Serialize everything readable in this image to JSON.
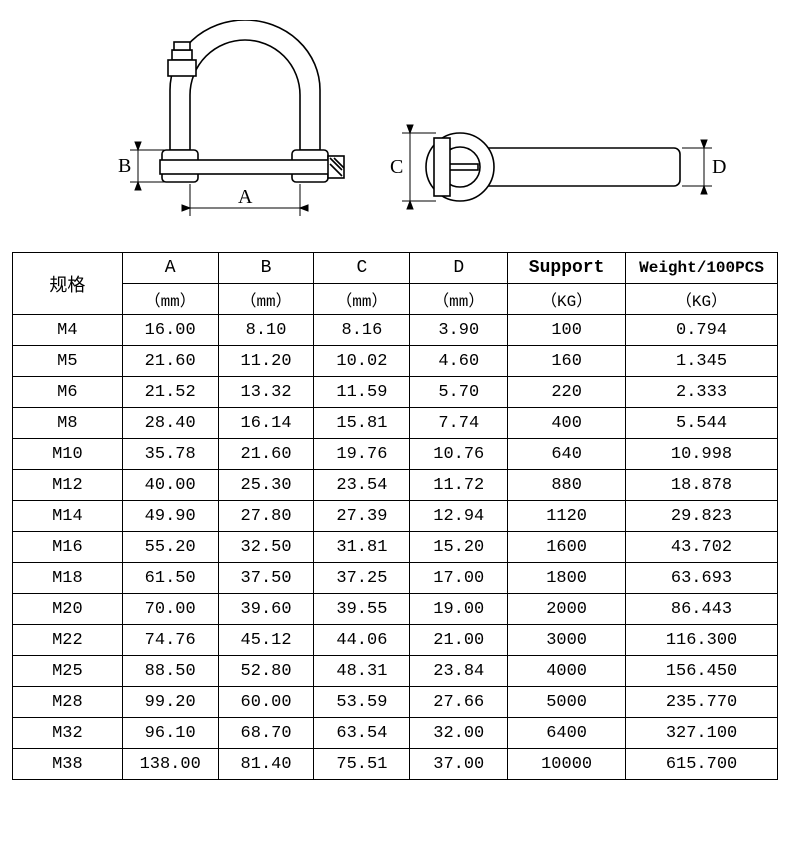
{
  "diagram": {
    "labels": {
      "A": "A",
      "B": "B",
      "C": "C",
      "D": "D"
    },
    "stroke": "#000000",
    "fill": "#ffffff",
    "hatch_fill": "#eeeeee"
  },
  "table": {
    "headers": {
      "spec": "规格",
      "A": "A",
      "A_unit": "（mm）",
      "B": "B",
      "B_unit": "（mm）",
      "C": "C",
      "C_unit": "（mm）",
      "D": "D",
      "D_unit": "（mm）",
      "support": "Support",
      "support_unit": "（KG）",
      "weight": "Weight/100PCS",
      "weight_unit": "（KG）"
    },
    "rows": [
      {
        "spec": "M4",
        "A": "16.00",
        "B": "8.10",
        "C": "8.16",
        "D": "3.90",
        "support": "100",
        "weight": "0.794"
      },
      {
        "spec": "M5",
        "A": "21.60",
        "B": "11.20",
        "C": "10.02",
        "D": "4.60",
        "support": "160",
        "weight": "1.345"
      },
      {
        "spec": "M6",
        "A": "21.52",
        "B": "13.32",
        "C": "11.59",
        "D": "5.70",
        "support": "220",
        "weight": "2.333"
      },
      {
        "spec": "M8",
        "A": "28.40",
        "B": "16.14",
        "C": "15.81",
        "D": "7.74",
        "support": "400",
        "weight": "5.544"
      },
      {
        "spec": "M10",
        "A": "35.78",
        "B": "21.60",
        "C": "19.76",
        "D": "10.76",
        "support": "640",
        "weight": "10.998"
      },
      {
        "spec": "M12",
        "A": "40.00",
        "B": "25.30",
        "C": "23.54",
        "D": "11.72",
        "support": "880",
        "weight": "18.878"
      },
      {
        "spec": "M14",
        "A": "49.90",
        "B": "27.80",
        "C": "27.39",
        "D": "12.94",
        "support": "1120",
        "weight": "29.823"
      },
      {
        "spec": "M16",
        "A": "55.20",
        "B": "32.50",
        "C": "31.81",
        "D": "15.20",
        "support": "1600",
        "weight": "43.702"
      },
      {
        "spec": "M18",
        "A": "61.50",
        "B": "37.50",
        "C": "37.25",
        "D": "17.00",
        "support": "1800",
        "weight": "63.693"
      },
      {
        "spec": "M20",
        "A": "70.00",
        "B": "39.60",
        "C": "39.55",
        "D": "19.00",
        "support": "2000",
        "weight": "86.443"
      },
      {
        "spec": "M22",
        "A": "74.76",
        "B": "45.12",
        "C": "44.06",
        "D": "21.00",
        "support": "3000",
        "weight": "116.300"
      },
      {
        "spec": "M25",
        "A": "88.50",
        "B": "52.80",
        "C": "48.31",
        "D": "23.84",
        "support": "4000",
        "weight": "156.450"
      },
      {
        "spec": "M28",
        "A": "99.20",
        "B": "60.00",
        "C": "53.59",
        "D": "27.66",
        "support": "5000",
        "weight": "235.770"
      },
      {
        "spec": "M32",
        "A": "96.10",
        "B": "68.70",
        "C": "63.54",
        "D": "32.00",
        "support": "6400",
        "weight": "327.100"
      },
      {
        "spec": "M38",
        "A": "138.00",
        "B": "81.40",
        "C": "75.51",
        "D": "37.00",
        "support": "10000",
        "weight": "615.700"
      }
    ]
  }
}
